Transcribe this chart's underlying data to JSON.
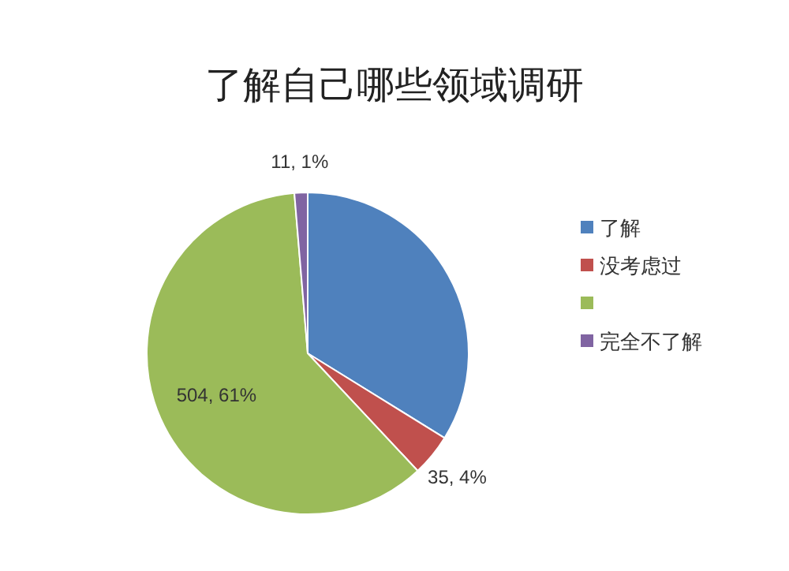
{
  "chart_data": {
    "type": "pie",
    "title": "了解自己哪些领域调研",
    "categories": [
      "了解",
      "没考虑过",
      null,
      "完全不了解"
    ],
    "values": [
      281,
      35,
      504,
      11
    ],
    "colors": [
      "#4f81bd",
      "#c0504d",
      "#9bbb59",
      "#8064a2"
    ],
    "value_labels": [
      null,
      "35, 4%",
      "504, 61%",
      "11, 1%"
    ],
    "legend": "right"
  }
}
